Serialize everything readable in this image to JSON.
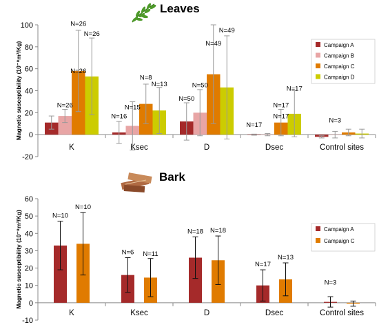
{
  "chart_data": [
    {
      "type": "bar",
      "title": "Leaves",
      "ylabel": "Magnetic susceptibility (10⁻⁸m³/Kg)",
      "ylim": [
        -20,
        100
      ],
      "yticks": [
        -20,
        0,
        20,
        40,
        60,
        80,
        100
      ],
      "categories": [
        "K",
        "Ksec",
        "D",
        "Dsec",
        "Control sites"
      ],
      "legend_position": "right",
      "icon": "leaf-icon",
      "series": [
        {
          "name": "Campaign A",
          "color": "#a52a2a",
          "values": [
            11,
            2,
            12,
            0,
            -2
          ],
          "errors": [
            6,
            10,
            17,
            0.5,
            1
          ]
        },
        {
          "name": "Campaign B",
          "color": "#e8a5a5",
          "values": [
            17,
            8,
            20,
            0,
            0
          ],
          "errors": [
            6,
            22,
            21,
            1,
            3
          ]
        },
        {
          "name": "Campaign C",
          "color": "#e07b00",
          "values": [
            58,
            28,
            55,
            11,
            2
          ],
          "errors": [
            37,
            18,
            45,
            12,
            3
          ]
        },
        {
          "name": "Campaign D",
          "color": "#cccc00",
          "values": [
            53,
            22,
            43,
            19,
            1
          ],
          "errors": [
            35,
            21,
            47,
            21,
            4
          ]
        }
      ],
      "annotations": [
        {
          "text": "N=26",
          "category": "K",
          "series": "Campaign B",
          "y": 25
        },
        {
          "text": "N=26",
          "category": "K",
          "series": "Campaign C",
          "y": 56
        },
        {
          "text": "N=26",
          "category": "K",
          "series": "Campaign C",
          "y": 99
        },
        {
          "text": "N=26",
          "category": "K",
          "series": "Campaign D",
          "y": 90
        },
        {
          "text": "N=16",
          "category": "Ksec",
          "series": "Campaign A",
          "y": 15
        },
        {
          "text": "N=15",
          "category": "Ksec",
          "series": "Campaign B",
          "y": 23
        },
        {
          "text": "N=8",
          "category": "Ksec",
          "series": "Campaign C",
          "y": 50
        },
        {
          "text": "N=13",
          "category": "Ksec",
          "series": "Campaign D",
          "y": 44
        },
        {
          "text": "N=50",
          "category": "D",
          "series": "Campaign A",
          "y": 31
        },
        {
          "text": "N=50",
          "category": "D",
          "series": "Campaign B",
          "y": 43
        },
        {
          "text": "N=49",
          "category": "D",
          "series": "Campaign C",
          "y": 81
        },
        {
          "text": "N=49",
          "category": "D",
          "series": "Campaign D",
          "y": 93
        },
        {
          "text": "N=17",
          "category": "Dsec",
          "series": "Campaign A",
          "y": 7
        },
        {
          "text": "N=17",
          "category": "Dsec",
          "series": "Campaign C",
          "y": 15
        },
        {
          "text": "N=17",
          "category": "Dsec",
          "series": "Campaign C",
          "y": 25
        },
        {
          "text": "N=17",
          "category": "Dsec",
          "series": "Campaign D",
          "y": 40
        },
        {
          "text": "N=3",
          "category": "Control sites",
          "series": "Campaign B",
          "y": 11
        }
      ]
    },
    {
      "type": "bar",
      "title": "Bark",
      "ylabel": "Magnetic susceptibility (10⁻⁸m³/Kg)",
      "ylim": [
        -10,
        60
      ],
      "yticks": [
        -10,
        0,
        10,
        20,
        30,
        40,
        50,
        60
      ],
      "categories": [
        "K",
        "Ksec",
        "D",
        "Dsec",
        "Control sites"
      ],
      "legend_position": "right",
      "icon": "bark-icon",
      "series": [
        {
          "name": "Campaign A",
          "color": "#a52a2a",
          "values": [
            33,
            16,
            26,
            10,
            0.5
          ],
          "errors": [
            14,
            10,
            12,
            9,
            3
          ]
        },
        {
          "name": "Campaign C",
          "color": "#e07b00",
          "values": [
            34,
            14.5,
            24.5,
            13.5,
            -0.5
          ],
          "errors": [
            18,
            11,
            14,
            9.5,
            1.5
          ]
        }
      ],
      "annotations": [
        {
          "text": "N=10",
          "category": "K",
          "series": "Campaign A",
          "y": 49
        },
        {
          "text": "N=10",
          "category": "K",
          "series": "Campaign C",
          "y": 54
        },
        {
          "text": "N=6",
          "category": "Ksec",
          "series": "Campaign A",
          "y": 28
        },
        {
          "text": "N=11",
          "category": "Ksec",
          "series": "Campaign C",
          "y": 27
        },
        {
          "text": "N=18",
          "category": "D",
          "series": "Campaign A",
          "y": 40
        },
        {
          "text": "N=18",
          "category": "D",
          "series": "Campaign C",
          "y": 40.5
        },
        {
          "text": "N=17",
          "category": "Dsec",
          "series": "Campaign A",
          "y": 21
        },
        {
          "text": "N=13",
          "category": "Dsec",
          "series": "Campaign C",
          "y": 25
        },
        {
          "text": "N=3",
          "category": "Control sites",
          "series": "Campaign A",
          "y": 10.5
        }
      ]
    }
  ]
}
